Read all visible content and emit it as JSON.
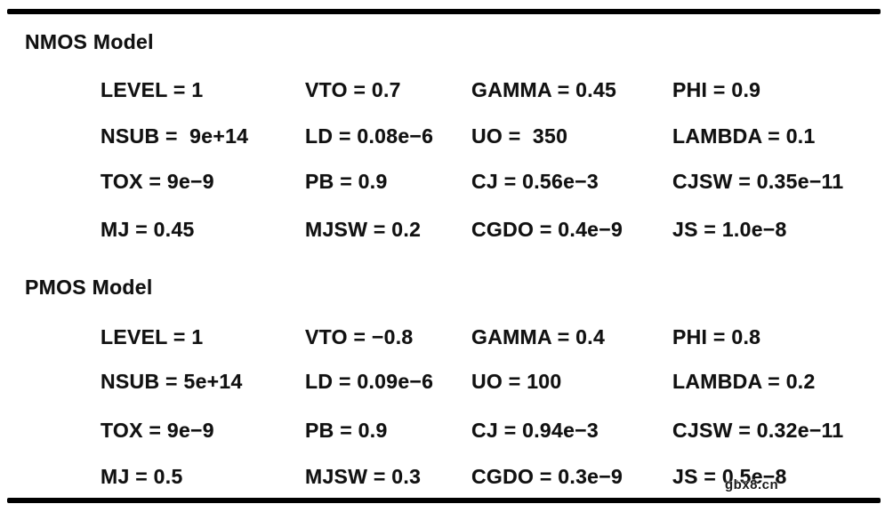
{
  "page": {
    "background_color": "#ffffff",
    "text_color": "#111111",
    "rule_color": "#000000"
  },
  "watermark": {
    "text": "gbx8.cn"
  },
  "sections": [
    {
      "title": "NMOS Model",
      "rows": [
        [
          "LEVEL = 1",
          "VTO = 0.7",
          "GAMMA = 0.45",
          "PHI = 0.9"
        ],
        [
          "NSUB =  9e+14",
          "LD = 0.08e−6",
          "UO =  350",
          "LAMBDA = 0.1"
        ],
        [
          "TOX = 9e−9",
          "PB = 0.9",
          "CJ = 0.56e−3",
          "CJSW = 0.35e−11"
        ],
        [
          "MJ = 0.45",
          "MJSW = 0.2",
          "CGDO = 0.4e−9",
          "JS = 1.0e−8"
        ]
      ]
    },
    {
      "title": "PMOS Model",
      "rows": [
        [
          "LEVEL = 1",
          "VTO = −0.8",
          "GAMMA = 0.4",
          "PHI = 0.8"
        ],
        [
          "NSUB = 5e+14",
          "LD = 0.09e−6",
          "UO = 100",
          "LAMBDA = 0.2"
        ],
        [
          "TOX = 9e−9",
          "PB = 0.9",
          "CJ = 0.94e−3",
          "CJSW = 0.32e−11"
        ],
        [
          "MJ = 0.5",
          "MJSW = 0.3",
          "CGDO = 0.3e−9",
          "JS = 0.5e−8"
        ]
      ]
    }
  ]
}
